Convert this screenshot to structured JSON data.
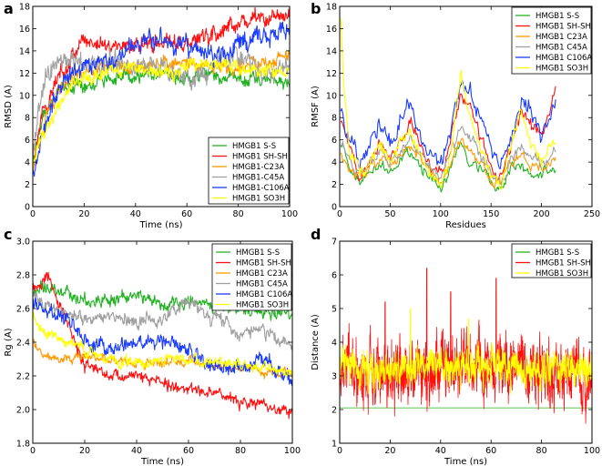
{
  "chart_data": [
    {
      "panel": "a",
      "type": "line",
      "xlabel": "Time (ns)",
      "ylabel": "RMSD (A)",
      "xlim": [
        0,
        100
      ],
      "ylim": [
        0,
        18
      ],
      "xticks": [
        0,
        20,
        40,
        60,
        80,
        100
      ],
      "yticks": [
        0,
        2,
        4,
        6,
        8,
        10,
        12,
        14,
        16,
        18
      ],
      "legend_position": "bottom-right",
      "series": [
        {
          "name": "HMGB1 S-S",
          "color": "#22b222",
          "x": [
            0,
            2,
            5,
            10,
            15,
            20,
            30,
            40,
            50,
            60,
            70,
            80,
            90,
            100
          ],
          "y": [
            3.5,
            6.5,
            8.5,
            10.5,
            10.8,
            11.0,
            11.5,
            11.8,
            12.0,
            11.5,
            11.8,
            11.5,
            11.5,
            11.0
          ],
          "noise": 0.6
        },
        {
          "name": "HMGB1 SH-SH",
          "color": "#ff1010",
          "x": [
            0,
            2,
            5,
            10,
            15,
            20,
            30,
            40,
            50,
            60,
            70,
            80,
            90,
            100
          ],
          "y": [
            3.2,
            7.0,
            9.0,
            11.5,
            13.5,
            15.0,
            14.5,
            14.5,
            15.0,
            14.5,
            15.5,
            16.5,
            17.0,
            17.0
          ],
          "noise": 0.7
        },
        {
          "name": "HMGB1-C23A",
          "color": "#ff9900",
          "x": [
            0,
            2,
            5,
            10,
            15,
            20,
            30,
            40,
            50,
            60,
            70,
            80,
            90,
            100
          ],
          "y": [
            3.0,
            5.5,
            8.0,
            10.5,
            11.5,
            12.0,
            12.5,
            12.5,
            13.0,
            13.0,
            12.5,
            12.5,
            13.0,
            13.5
          ],
          "noise": 0.6
        },
        {
          "name": "HMGB1-C45A",
          "color": "#a0a0a0",
          "x": [
            0,
            2,
            5,
            10,
            15,
            20,
            30,
            40,
            50,
            60,
            70,
            80,
            90,
            100
          ],
          "y": [
            4.0,
            8.5,
            11.5,
            13.0,
            13.5,
            13.0,
            13.0,
            12.5,
            12.5,
            11.5,
            12.5,
            13.5,
            12.0,
            12.5
          ],
          "noise": 0.9
        },
        {
          "name": "HMGB1-C106A",
          "color": "#1a3cff",
          "x": [
            0,
            2,
            5,
            10,
            15,
            20,
            30,
            40,
            50,
            60,
            70,
            80,
            90,
            100
          ],
          "y": [
            3.0,
            5.0,
            7.5,
            10.5,
            12.0,
            12.5,
            13.0,
            14.5,
            15.0,
            14.5,
            13.5,
            14.5,
            15.5,
            16.0
          ],
          "noise": 0.8
        },
        {
          "name": "HMGB1 SO3H",
          "color": "#ffff00",
          "x": [
            0,
            2,
            5,
            10,
            15,
            20,
            30,
            40,
            50,
            60,
            70,
            80,
            90,
            100
          ],
          "y": [
            3.5,
            6.0,
            7.0,
            9.0,
            11.0,
            11.5,
            12.0,
            12.5,
            12.0,
            12.5,
            13.0,
            12.5,
            12.0,
            12.5
          ],
          "noise": 0.6
        }
      ]
    },
    {
      "panel": "b",
      "type": "line",
      "xlabel": "Residues",
      "ylabel": "RMSF (A)",
      "xlim": [
        0,
        250
      ],
      "ylim": [
        0,
        18
      ],
      "xticks": [
        0,
        50,
        100,
        150,
        200,
        250
      ],
      "yticks": [
        0,
        2,
        4,
        6,
        8,
        10,
        12,
        14,
        16,
        18
      ],
      "legend_position": "top-right",
      "series": [
        {
          "name": "HMGB1 S-S",
          "color": "#22b222",
          "x": [
            1,
            10,
            20,
            30,
            40,
            50,
            60,
            70,
            80,
            90,
            100,
            110,
            120,
            130,
            140,
            150,
            160,
            170,
            180,
            190,
            200,
            214
          ],
          "y": [
            6,
            3.5,
            2.5,
            3.0,
            4.0,
            3.0,
            4.5,
            5.0,
            3.5,
            2.5,
            1.5,
            3.5,
            5.5,
            4.0,
            3.5,
            2.0,
            1.5,
            3.5,
            3.5,
            2.5,
            3.0,
            3.5
          ],
          "noise": 0.5
        },
        {
          "name": "HMGB1 SH-SH",
          "color": "#ff1010",
          "x": [
            1,
            10,
            20,
            30,
            40,
            50,
            60,
            70,
            80,
            90,
            100,
            110,
            120,
            130,
            140,
            150,
            160,
            170,
            180,
            190,
            200,
            214
          ],
          "y": [
            8,
            5.0,
            3.0,
            4.5,
            6.0,
            4.5,
            6.0,
            7.5,
            5.5,
            4.0,
            3.0,
            6.0,
            10.0,
            9.0,
            6.0,
            3.5,
            2.5,
            5.5,
            8.5,
            7.5,
            6.0,
            10.5
          ],
          "noise": 0.6
        },
        {
          "name": "HMGB1 C23A",
          "color": "#ff9900",
          "x": [
            1,
            10,
            20,
            30,
            40,
            50,
            60,
            70,
            80,
            90,
            100,
            110,
            120,
            130,
            140,
            150,
            160,
            170,
            180,
            190,
            200,
            214
          ],
          "y": [
            5,
            3.5,
            2.5,
            3.5,
            4.5,
            3.5,
            4.5,
            5.5,
            4.0,
            3.0,
            2.0,
            4.0,
            6.0,
            5.0,
            4.0,
            2.5,
            2.0,
            4.0,
            4.5,
            3.5,
            3.5,
            4.5
          ],
          "noise": 0.5
        },
        {
          "name": "HMGB1 C45A",
          "color": "#a0a0a0",
          "x": [
            1,
            10,
            20,
            30,
            40,
            50,
            60,
            70,
            80,
            90,
            100,
            110,
            120,
            130,
            140,
            150,
            160,
            170,
            180,
            190,
            200,
            214
          ],
          "y": [
            6,
            4.0,
            3.0,
            4.0,
            5.0,
            4.0,
            5.0,
            6.0,
            4.5,
            3.5,
            2.5,
            4.5,
            7.0,
            6.0,
            4.5,
            3.0,
            2.0,
            4.5,
            5.5,
            4.5,
            4.0,
            5.0
          ],
          "noise": 0.5
        },
        {
          "name": "HMGB1 C106A",
          "color": "#1a3cff",
          "x": [
            1,
            10,
            20,
            30,
            40,
            50,
            60,
            70,
            80,
            90,
            100,
            110,
            120,
            130,
            140,
            150,
            160,
            170,
            180,
            190,
            200,
            214
          ],
          "y": [
            9,
            6.0,
            4.0,
            6.0,
            8.0,
            5.5,
            8.0,
            9.5,
            6.0,
            4.5,
            3.5,
            7.0,
            11.5,
            10.0,
            8.0,
            5.0,
            3.5,
            6.5,
            9.5,
            8.5,
            6.5,
            9.5
          ],
          "noise": 0.8
        },
        {
          "name": "HMGB1 SO3H",
          "color": "#ffff00",
          "x": [
            1,
            5,
            10,
            20,
            30,
            40,
            50,
            60,
            70,
            80,
            90,
            100,
            110,
            120,
            130,
            140,
            150,
            160,
            170,
            180,
            190,
            200,
            214
          ],
          "y": [
            17,
            10,
            5.0,
            2.5,
            4.0,
            5.5,
            4.0,
            6.0,
            6.5,
            4.5,
            3.0,
            2.0,
            5.0,
            12.0,
            8.0,
            5.0,
            3.0,
            2.0,
            5.5,
            9.0,
            5.5,
            4.0,
            6.0
          ],
          "noise": 0.6
        }
      ]
    },
    {
      "panel": "c",
      "type": "line",
      "xlabel": "Time (ns)",
      "ylabel": "Rg (A)",
      "xlim": [
        0,
        100
      ],
      "ylim": [
        1.8,
        3.0
      ],
      "xticks": [
        0,
        20,
        40,
        60,
        80,
        100
      ],
      "yticks": [
        1.8,
        2.0,
        2.2,
        2.4,
        2.6,
        2.8,
        3.0
      ],
      "legend_position": "top-right",
      "series": [
        {
          "name": "HMGB1 S-S",
          "color": "#22b222",
          "x": [
            0,
            5,
            10,
            20,
            30,
            40,
            50,
            60,
            70,
            80,
            90,
            100
          ],
          "y": [
            2.7,
            2.72,
            2.7,
            2.65,
            2.65,
            2.68,
            2.62,
            2.65,
            2.62,
            2.6,
            2.58,
            2.55
          ],
          "noise": 0.035
        },
        {
          "name": "HMGB1 SH-SH",
          "color": "#ff1010",
          "x": [
            0,
            3,
            6,
            10,
            15,
            20,
            30,
            40,
            50,
            60,
            70,
            80,
            90,
            100
          ],
          "y": [
            2.75,
            2.7,
            2.8,
            2.65,
            2.45,
            2.25,
            2.2,
            2.2,
            2.15,
            2.12,
            2.1,
            2.05,
            2.02,
            1.98
          ],
          "noise": 0.035
        },
        {
          "name": "HMGB1 C23A",
          "color": "#ff9900",
          "x": [
            0,
            5,
            10,
            20,
            30,
            40,
            50,
            60,
            70,
            80,
            90,
            100
          ],
          "y": [
            2.4,
            2.32,
            2.3,
            2.32,
            2.3,
            2.28,
            2.28,
            2.3,
            2.25,
            2.25,
            2.22,
            2.22
          ],
          "noise": 0.025
        },
        {
          "name": "HMGB1 C45A",
          "color": "#a0a0a0",
          "x": [
            0,
            5,
            10,
            20,
            30,
            40,
            50,
            60,
            70,
            80,
            90,
            100
          ],
          "y": [
            2.7,
            2.6,
            2.58,
            2.55,
            2.55,
            2.52,
            2.55,
            2.62,
            2.55,
            2.45,
            2.45,
            2.38
          ],
          "noise": 0.04
        },
        {
          "name": "HMGB1 C106A",
          "color": "#1a3cff",
          "x": [
            0,
            5,
            10,
            20,
            30,
            40,
            50,
            60,
            70,
            80,
            90,
            100
          ],
          "y": [
            2.65,
            2.55,
            2.6,
            2.4,
            2.35,
            2.4,
            2.4,
            2.35,
            2.25,
            2.25,
            2.3,
            2.15
          ],
          "noise": 0.045
        },
        {
          "name": "HMGB1 SO3H",
          "color": "#ffff00",
          "x": [
            0,
            5,
            10,
            20,
            30,
            40,
            50,
            60,
            70,
            80,
            90,
            100
          ],
          "y": [
            2.55,
            2.45,
            2.42,
            2.35,
            2.3,
            2.28,
            2.3,
            2.3,
            2.28,
            2.28,
            2.25,
            2.22
          ],
          "noise": 0.03
        }
      ]
    },
    {
      "panel": "d",
      "type": "line",
      "xlabel": "Time (ns)",
      "ylabel": "Distance (A)",
      "xlim": [
        0,
        100
      ],
      "ylim": [
        1,
        7
      ],
      "xticks": [
        0,
        20,
        40,
        60,
        80,
        100
      ],
      "yticks": [
        1,
        2,
        3,
        4,
        5,
        6,
        7
      ],
      "legend_position": "top-right",
      "series": [
        {
          "name": "HMGB1 S-S",
          "color": "#22b222",
          "x": [
            0,
            100
          ],
          "y": [
            2.05,
            2.05
          ],
          "noise": 0.0
        },
        {
          "name": "HMGB1 SH-SH",
          "color": "#ff1010",
          "x": [
            0,
            20,
            40,
            60,
            80,
            100
          ],
          "y": [
            3.2,
            3.1,
            3.2,
            3.2,
            3.0,
            3.1
          ],
          "noise": 0.85,
          "spikes": [
            {
              "x": 34.5,
              "y": 6.2
            },
            {
              "x": 62,
              "y": 5.9
            },
            {
              "x": 18,
              "y": 5.2
            },
            {
              "x": 44,
              "y": 5.5
            }
          ]
        },
        {
          "name": "HMGB1 SO3H",
          "color": "#ffff00",
          "x": [
            0,
            20,
            40,
            60,
            80,
            100
          ],
          "y": [
            3.3,
            3.2,
            3.3,
            3.3,
            3.2,
            3.3
          ],
          "noise": 0.45,
          "spikes": [
            {
              "x": 28,
              "y": 5.0
            },
            {
              "x": 51,
              "y": 4.7
            }
          ]
        }
      ]
    }
  ]
}
